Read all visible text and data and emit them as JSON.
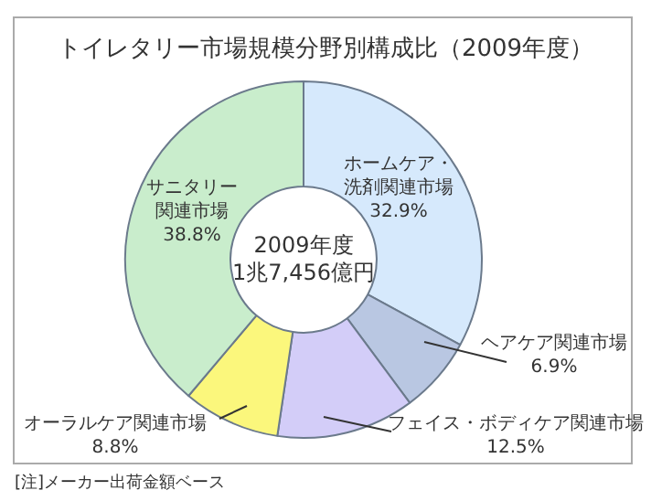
{
  "chart_data": {
    "type": "donut",
    "title": "トイレタリー市場規模分野別構成比（2009年度）",
    "categories": [
      "ホームケア・洗剤関連市場",
      "ヘアケア関連市場",
      "フェイス・ボディケア関連市場",
      "オーラルケア関連市場",
      "サニタリー関連市場"
    ],
    "values": [
      32.9,
      6.9,
      12.5,
      8.8,
      38.8
    ],
    "value_labels": [
      "32.9%",
      "6.9%",
      "12.5%",
      "8.8%",
      "38.8%"
    ],
    "colors": [
      "#d6e9fc",
      "#b9c7e2",
      "#d3cdf8",
      "#fbf77c",
      "#c9edcc"
    ],
    "annotations": [
      "2009年度",
      "1兆7,456億円",
      "[注]メーカー出荷金額ベース"
    ],
    "legend": false
  }
}
